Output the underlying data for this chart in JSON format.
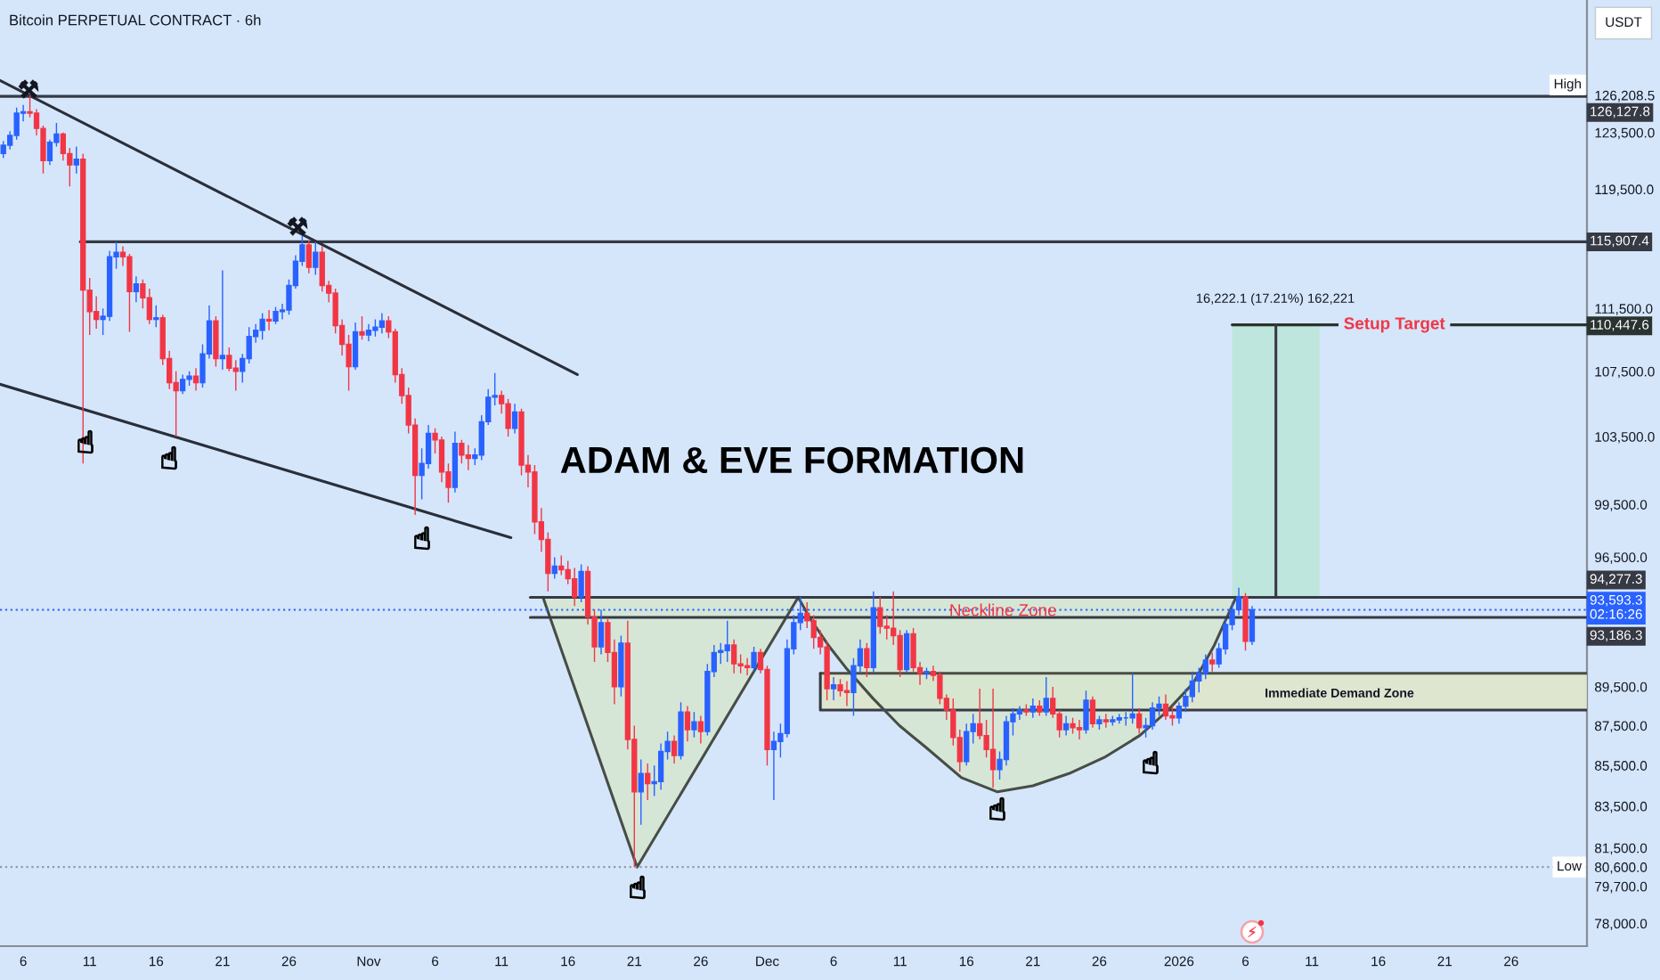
{
  "chart_data": {
    "type": "candlestick",
    "title": "ADAM & EVE FORMATION",
    "subtitle": "Bitcoin PERPETUAL CONTRACT · 6h",
    "ylabel": "USDT",
    "log": true,
    "xlim": [
      "2025-10-04T06:00",
      "2026-01-31T17:00"
    ],
    "ylim": [
      76980,
      133390
    ],
    "xticks": [
      {
        "value": "2025-10-06",
        "label": "6"
      },
      {
        "value": "2025-10-11",
        "label": "11"
      },
      {
        "value": "2025-10-16",
        "label": "16"
      },
      {
        "value": "2025-10-21",
        "label": "21"
      },
      {
        "value": "2025-10-26",
        "label": "26"
      },
      {
        "value": "2025-11-01",
        "label": "Nov"
      },
      {
        "value": "2025-11-06",
        "label": "6"
      },
      {
        "value": "2025-11-11",
        "label": "11"
      },
      {
        "value": "2025-11-16",
        "label": "16"
      },
      {
        "value": "2025-11-21",
        "label": "21"
      },
      {
        "value": "2025-11-26",
        "label": "26"
      },
      {
        "value": "2025-12-01",
        "label": "Dec"
      },
      {
        "value": "2025-12-06",
        "label": "6"
      },
      {
        "value": "2025-12-11",
        "label": "11"
      },
      {
        "value": "2025-12-16",
        "label": "16"
      },
      {
        "value": "2025-12-21",
        "label": "21"
      },
      {
        "value": "2025-12-26",
        "label": "26"
      },
      {
        "value": "2026-01-01",
        "label": "2026"
      },
      {
        "value": "2026-01-06",
        "label": "6"
      },
      {
        "value": "2026-01-11",
        "label": "11"
      },
      {
        "value": "2026-01-16",
        "label": "16"
      },
      {
        "value": "2026-01-21",
        "label": "21"
      },
      {
        "value": "2026-01-26",
        "label": "26"
      }
    ],
    "yticks": [
      {
        "value": 126208.5,
        "label": "126,208.5"
      },
      {
        "value": 123500,
        "label": "123,500.0"
      },
      {
        "value": 119500,
        "label": "119,500.0"
      },
      {
        "value": 111500,
        "label": "111,500.0"
      },
      {
        "value": 107500,
        "label": "107,500.0"
      },
      {
        "value": 103500,
        "label": "103,500.0"
      },
      {
        "value": 99500,
        "label": "99,500.0"
      },
      {
        "value": 96500,
        "label": "96,500.0"
      },
      {
        "value": 89500,
        "label": "89,500.0"
      },
      {
        "value": 87500,
        "label": "87,500.0"
      },
      {
        "value": 85500,
        "label": "85,500.0"
      },
      {
        "value": 83500,
        "label": "83,500.0"
      },
      {
        "value": 81500,
        "label": "81,500.0"
      },
      {
        "value": 80600,
        "label": "80,600.0"
      },
      {
        "value": 79700,
        "label": "79,700.0"
      },
      {
        "value": 78000,
        "label": "78,000.0"
      }
    ],
    "x": [
      "2025-10-04T12:00",
      "2025-10-05T00:00",
      "2025-10-05T12:00",
      "2025-10-06T00:00",
      "2025-10-06T12:00",
      "2025-10-07T00:00",
      "2025-10-07T12:00",
      "2025-10-08T00:00",
      "2025-10-08T12:00",
      "2025-10-09T00:00",
      "2025-10-09T12:00",
      "2025-10-10T00:00",
      "2025-10-10T12:00",
      "2025-10-11T00:00",
      "2025-10-11T12:00",
      "2025-10-12T00:00",
      "2025-10-12T12:00",
      "2025-10-13T00:00",
      "2025-10-13T12:00",
      "2025-10-14T00:00",
      "2025-10-14T12:00",
      "2025-10-15T00:00",
      "2025-10-15T12:00",
      "2025-10-16T00:00",
      "2025-10-16T12:00",
      "2025-10-17T00:00",
      "2025-10-17T12:00",
      "2025-10-18T00:00",
      "2025-10-18T12:00",
      "2025-10-19T00:00",
      "2025-10-19T12:00",
      "2025-10-20T00:00",
      "2025-10-20T12:00",
      "2025-10-21T00:00",
      "2025-10-21T12:00",
      "2025-10-22T00:00",
      "2025-10-22T12:00",
      "2025-10-23T00:00",
      "2025-10-23T12:00",
      "2025-10-24T00:00",
      "2025-10-24T12:00",
      "2025-10-25T00:00",
      "2025-10-25T12:00",
      "2025-10-26T00:00",
      "2025-10-26T12:00",
      "2025-10-27T00:00",
      "2025-10-27T12:00",
      "2025-10-28T00:00",
      "2025-10-28T12:00",
      "2025-10-29T00:00",
      "2025-10-29T12:00",
      "2025-10-30T00:00",
      "2025-10-30T12:00",
      "2025-10-31T00:00",
      "2025-10-31T12:00",
      "2025-11-01T00:00",
      "2025-11-01T12:00",
      "2025-11-02T00:00",
      "2025-11-02T12:00",
      "2025-11-03T00:00",
      "2025-11-03T12:00",
      "2025-11-04T00:00",
      "2025-11-04T12:00",
      "2025-11-05T00:00",
      "2025-11-05T12:00",
      "2025-11-06T00:00",
      "2025-11-06T12:00",
      "2025-11-07T00:00",
      "2025-11-07T12:00",
      "2025-11-08T00:00",
      "2025-11-08T12:00",
      "2025-11-09T00:00",
      "2025-11-09T12:00",
      "2025-11-10T00:00",
      "2025-11-10T12:00",
      "2025-11-11T00:00",
      "2025-11-11T12:00",
      "2025-11-12T00:00",
      "2025-11-12T12:00",
      "2025-11-13T00:00",
      "2025-11-13T12:00",
      "2025-11-14T00:00",
      "2025-11-14T12:00",
      "2025-11-15T00:00",
      "2025-11-15T12:00",
      "2025-11-16T00:00",
      "2025-11-16T12:00",
      "2025-11-17T00:00",
      "2025-11-17T12:00",
      "2025-11-18T00:00",
      "2025-11-18T12:00",
      "2025-11-19T00:00",
      "2025-11-19T12:00",
      "2025-11-20T00:00",
      "2025-11-20T12:00",
      "2025-11-21T00:00",
      "2025-11-21T12:00",
      "2025-11-22T00:00",
      "2025-11-22T12:00",
      "2025-11-23T00:00",
      "2025-11-23T12:00",
      "2025-11-24T00:00",
      "2025-11-24T12:00",
      "2025-11-25T00:00",
      "2025-11-25T12:00",
      "2025-11-26T00:00",
      "2025-11-26T12:00",
      "2025-11-27T00:00",
      "2025-11-27T12:00",
      "2025-11-28T00:00",
      "2025-11-28T12:00",
      "2025-11-29T00:00",
      "2025-11-29T12:00",
      "2025-11-30T00:00",
      "2025-11-30T12:00",
      "2025-12-01T00:00",
      "2025-12-01T12:00",
      "2025-12-02T00:00",
      "2025-12-02T12:00",
      "2025-12-03T00:00",
      "2025-12-03T12:00",
      "2025-12-04T00:00",
      "2025-12-04T12:00",
      "2025-12-05T00:00",
      "2025-12-05T12:00",
      "2025-12-06T00:00",
      "2025-12-06T12:00",
      "2025-12-07T00:00",
      "2025-12-07T12:00",
      "2025-12-08T00:00",
      "2025-12-08T12:00",
      "2025-12-09T00:00",
      "2025-12-09T12:00",
      "2025-12-10T00:00",
      "2025-12-10T12:00",
      "2025-12-11T00:00",
      "2025-12-11T12:00",
      "2025-12-12T00:00",
      "2025-12-12T12:00",
      "2025-12-13T00:00",
      "2025-12-13T12:00",
      "2025-12-14T00:00",
      "2025-12-14T12:00",
      "2025-12-15T00:00",
      "2025-12-15T12:00",
      "2025-12-16T00:00",
      "2025-12-16T12:00",
      "2025-12-17T00:00",
      "2025-12-17T12:00",
      "2025-12-18T00:00",
      "2025-12-18T12:00",
      "2025-12-19T00:00",
      "2025-12-19T12:00",
      "2025-12-20T00:00",
      "2025-12-20T12:00",
      "2025-12-21T00:00",
      "2025-12-21T12:00",
      "2025-12-22T00:00",
      "2025-12-22T12:00",
      "2025-12-23T00:00",
      "2025-12-23T12:00",
      "2025-12-24T00:00",
      "2025-12-24T12:00",
      "2025-12-25T00:00",
      "2025-12-25T12:00",
      "2025-12-26T00:00",
      "2025-12-26T12:00",
      "2025-12-27T00:00",
      "2025-12-27T12:00",
      "2025-12-28T00:00",
      "2025-12-28T12:00",
      "2025-12-29T00:00",
      "2025-12-29T12:00",
      "2025-12-30T00:00",
      "2025-12-30T12:00",
      "2025-12-31T00:00",
      "2025-12-31T12:00",
      "2026-01-01T00:00",
      "2026-01-01T12:00",
      "2026-01-02T00:00",
      "2026-01-02T12:00",
      "2026-01-03T00:00",
      "2026-01-03T12:00",
      "2026-01-04T00:00",
      "2026-01-04T12:00",
      "2026-01-05T00:00",
      "2026-01-05T12:00",
      "2026-01-06T00:00",
      "2026-01-06T12:00"
    ],
    "ohlc": [
      [
        122000,
        122900,
        121700,
        122600
      ],
      [
        122600,
        123600,
        122300,
        123300
      ],
      [
        123300,
        125300,
        123000,
        124900
      ],
      [
        124900,
        125500,
        124300,
        125000
      ],
      [
        125000,
        126208.5,
        124600,
        124900
      ],
      [
        124900,
        125200,
        123300,
        123800
      ],
      [
        123800,
        124000,
        120600,
        121500
      ],
      [
        121500,
        123000,
        121200,
        122800
      ],
      [
        122800,
        124200,
        122500,
        123400
      ],
      [
        123400,
        123500,
        121500,
        122000
      ],
      [
        122000,
        122400,
        119700,
        121200
      ],
      [
        121200,
        122500,
        120600,
        121600
      ],
      [
        121600,
        122000,
        101900,
        112700
      ],
      [
        112700,
        113500,
        109800,
        111300
      ],
      [
        111300,
        112300,
        110200,
        110800
      ],
      [
        110800,
        111500,
        109800,
        111000
      ],
      [
        111000,
        115300,
        110700,
        114900
      ],
      [
        114900,
        115900,
        114100,
        115200
      ],
      [
        115200,
        115600,
        114300,
        114900
      ],
      [
        114900,
        115100,
        110000,
        112600
      ],
      [
        112600,
        113600,
        111900,
        113100
      ],
      [
        113100,
        113400,
        111500,
        112200
      ],
      [
        112200,
        112800,
        110500,
        110800
      ],
      [
        110800,
        111700,
        110300,
        110900
      ],
      [
        110900,
        111100,
        107900,
        108300
      ],
      [
        108300,
        108800,
        106400,
        106800
      ],
      [
        106800,
        107500,
        103500,
        106300
      ],
      [
        106300,
        107300,
        106100,
        107000
      ],
      [
        107000,
        107500,
        106600,
        107200
      ],
      [
        107200,
        107700,
        106300,
        106800
      ],
      [
        106800,
        109200,
        106500,
        108600
      ],
      [
        108600,
        111700,
        108300,
        110700
      ],
      [
        110700,
        111000,
        107800,
        108300
      ],
      [
        108300,
        114000,
        107600,
        108500
      ],
      [
        108500,
        109000,
        107500,
        107700
      ],
      [
        107700,
        108200,
        106300,
        107500
      ],
      [
        107500,
        108600,
        106800,
        108300
      ],
      [
        108300,
        110300,
        108000,
        109700
      ],
      [
        109700,
        110500,
        109300,
        110100
      ],
      [
        110100,
        111200,
        109500,
        110800
      ],
      [
        110800,
        111400,
        110100,
        110700
      ],
      [
        110700,
        111600,
        110500,
        111300
      ],
      [
        111300,
        111800,
        110800,
        111400
      ],
      [
        111400,
        113400,
        111100,
        113000
      ],
      [
        113000,
        115000,
        112800,
        114600
      ],
      [
        114600,
        116300,
        114300,
        115700
      ],
      [
        115700,
        116000,
        113800,
        114200
      ],
      [
        114200,
        115900,
        113700,
        115200
      ],
      [
        115200,
        115600,
        112600,
        113000
      ],
      [
        113000,
        113300,
        111900,
        112500
      ],
      [
        112500,
        112800,
        109900,
        110400
      ],
      [
        110400,
        110800,
        108500,
        109200
      ],
      [
        109200,
        109800,
        106300,
        107800
      ],
      [
        107800,
        110600,
        107600,
        110000
      ],
      [
        110000,
        111000,
        109500,
        109800
      ],
      [
        109800,
        110500,
        109400,
        110100
      ],
      [
        110100,
        110800,
        109700,
        110300
      ],
      [
        110300,
        111200,
        109900,
        110700
      ],
      [
        110700,
        111000,
        109600,
        110000
      ],
      [
        110000,
        110200,
        106800,
        107300
      ],
      [
        107300,
        107700,
        105500,
        106000
      ],
      [
        106000,
        106500,
        103700,
        104200
      ],
      [
        104200,
        104600,
        98900,
        101200
      ],
      [
        101200,
        102800,
        99800,
        101900
      ],
      [
        101900,
        104200,
        101600,
        103700
      ],
      [
        103700,
        104000,
        102500,
        103300
      ],
      [
        103300,
        103500,
        100800,
        101400
      ],
      [
        101400,
        101900,
        99600,
        100500
      ],
      [
        100500,
        103800,
        100200,
        103100
      ],
      [
        103100,
        103300,
        101900,
        102400
      ],
      [
        102400,
        103000,
        101500,
        102200
      ],
      [
        102200,
        102800,
        101800,
        102400
      ],
      [
        102400,
        104800,
        102100,
        104400
      ],
      [
        104400,
        106400,
        104200,
        105900
      ],
      [
        105900,
        107400,
        105400,
        106000
      ],
      [
        106000,
        106300,
        104900,
        105500
      ],
      [
        105500,
        105800,
        103500,
        104000
      ],
      [
        104000,
        105500,
        103700,
        105000
      ],
      [
        105000,
        105200,
        101200,
        101800
      ],
      [
        101800,
        102400,
        100500,
        101400
      ],
      [
        101400,
        101800,
        97800,
        98500
      ],
      [
        98500,
        99300,
        96800,
        97500
      ],
      [
        97500,
        97900,
        94600,
        95600
      ],
      [
        95600,
        96500,
        95300,
        96000
      ],
      [
        96000,
        96600,
        95500,
        95800
      ],
      [
        95800,
        96300,
        95000,
        95300
      ],
      [
        95300,
        95900,
        93800,
        94300
      ],
      [
        94300,
        96100,
        94000,
        95700
      ],
      [
        95700,
        96000,
        92800,
        93200
      ],
      [
        93200,
        93600,
        90800,
        91600
      ],
      [
        91600,
        93600,
        91200,
        92900
      ],
      [
        92900,
        93100,
        90800,
        91300
      ],
      [
        91300,
        92000,
        88600,
        89500
      ],
      [
        89500,
        92200,
        89000,
        91800
      ],
      [
        91800,
        93000,
        86300,
        86800
      ],
      [
        86800,
        87500,
        80600,
        84200
      ],
      [
        84200,
        85800,
        82600,
        85100
      ],
      [
        85100,
        85600,
        83800,
        84600
      ],
      [
        84600,
        85500,
        84000,
        84700
      ],
      [
        84700,
        86600,
        84300,
        86200
      ],
      [
        86200,
        87200,
        85800,
        86700
      ],
      [
        86700,
        87000,
        85600,
        86000
      ],
      [
        86000,
        88700,
        85800,
        88200
      ],
      [
        88200,
        88500,
        86700,
        87300
      ],
      [
        87300,
        88200,
        86900,
        87700
      ],
      [
        87700,
        88000,
        86600,
        87200
      ],
      [
        87200,
        90700,
        87000,
        90300
      ],
      [
        90300,
        91700,
        90000,
        91300
      ],
      [
        91300,
        91800,
        90700,
        91400
      ],
      [
        91400,
        93000,
        90800,
        91700
      ],
      [
        91700,
        92000,
        90200,
        90700
      ],
      [
        90700,
        91200,
        90200,
        90600
      ],
      [
        90600,
        91000,
        90100,
        90500
      ],
      [
        90500,
        91600,
        90300,
        91300
      ],
      [
        91300,
        91500,
        90200,
        90400
      ],
      [
        90400,
        90600,
        85500,
        86300
      ],
      [
        86300,
        87200,
        83800,
        86700
      ],
      [
        86700,
        87600,
        85900,
        87100
      ],
      [
        87100,
        92000,
        86900,
        91500
      ],
      [
        91500,
        93300,
        91200,
        92900
      ],
      [
        92900,
        94300,
        92500,
        93400
      ],
      [
        93400,
        94000,
        92600,
        93000
      ],
      [
        93000,
        93300,
        91500,
        92100
      ],
      [
        92100,
        92500,
        91200,
        91600
      ],
      [
        91600,
        91900,
        88800,
        89400
      ],
      [
        89400,
        90000,
        88800,
        89600
      ],
      [
        89600,
        89900,
        89000,
        89300
      ],
      [
        89300,
        89800,
        88500,
        89200
      ],
      [
        89200,
        91000,
        88000,
        90600
      ],
      [
        90600,
        92000,
        90200,
        91500
      ],
      [
        91500,
        91800,
        90000,
        90500
      ],
      [
        90500,
        94600,
        90200,
        93700
      ],
      [
        93700,
        94300,
        92300,
        92700
      ],
      [
        92700,
        93300,
        92000,
        92600
      ],
      [
        92600,
        94600,
        91700,
        92200
      ],
      [
        92200,
        92500,
        90000,
        90400
      ],
      [
        90400,
        92500,
        90200,
        92300
      ],
      [
        92300,
        92600,
        90300,
        90500
      ],
      [
        90500,
        90800,
        89600,
        90200
      ],
      [
        90200,
        90500,
        89900,
        90300
      ],
      [
        90300,
        90600,
        89800,
        90100
      ],
      [
        90100,
        90300,
        88600,
        88900
      ],
      [
        88900,
        89100,
        87800,
        88300
      ],
      [
        88300,
        88900,
        86500,
        86900
      ],
      [
        86900,
        87300,
        85200,
        85700
      ],
      [
        85700,
        87600,
        85500,
        87200
      ],
      [
        87200,
        88100,
        86600,
        87600
      ],
      [
        87600,
        89400,
        86800,
        87000
      ],
      [
        87000,
        87800,
        85900,
        86300
      ],
      [
        86300,
        89400,
        84400,
        85300
      ],
      [
        85300,
        86200,
        84800,
        85800
      ],
      [
        85800,
        88000,
        85500,
        87700
      ],
      [
        87700,
        88400,
        87000,
        88100
      ],
      [
        88100,
        88500,
        87800,
        88300
      ],
      [
        88300,
        88600,
        88000,
        88200
      ],
      [
        88200,
        88900,
        87900,
        88500
      ],
      [
        88500,
        88800,
        88000,
        88200
      ],
      [
        88200,
        90000,
        88000,
        88900
      ],
      [
        88900,
        89500,
        87900,
        88100
      ],
      [
        88100,
        88300,
        86900,
        87300
      ],
      [
        87300,
        88000,
        87000,
        87600
      ],
      [
        87600,
        87900,
        87100,
        87400
      ],
      [
        87400,
        87800,
        86800,
        87300
      ],
      [
        87300,
        89300,
        87100,
        88800
      ],
      [
        88800,
        89000,
        87400,
        87600
      ],
      [
        87600,
        88000,
        87300,
        87800
      ],
      [
        87800,
        88100,
        87400,
        87700
      ],
      [
        87700,
        88000,
        87500,
        87800
      ],
      [
        87800,
        88100,
        87600,
        87900
      ],
      [
        87900,
        88200,
        87500,
        87900
      ],
      [
        87900,
        90200,
        87600,
        88100
      ],
      [
        88100,
        88400,
        87100,
        87400
      ],
      [
        87400,
        87900,
        86900,
        87500
      ],
      [
        87500,
        88700,
        87300,
        88400
      ],
      [
        88400,
        89000,
        88000,
        88600
      ],
      [
        88600,
        89100,
        87800,
        88000
      ],
      [
        88000,
        88500,
        87500,
        87900
      ],
      [
        87900,
        88700,
        87600,
        88500
      ],
      [
        88500,
        89400,
        88200,
        89000
      ],
      [
        89000,
        90300,
        88700,
        89800
      ],
      [
        89800,
        90500,
        89200,
        90200
      ],
      [
        90200,
        91200,
        89900,
        90900
      ],
      [
        90900,
        91300,
        90300,
        90700
      ],
      [
        90700,
        91800,
        90500,
        91500
      ],
      [
        91500,
        93100,
        91200,
        92800
      ],
      [
        92800,
        94000,
        92500,
        93600
      ],
      [
        93600,
        94800,
        93300,
        94300
      ],
      [
        94300,
        94500,
        91400,
        91900
      ],
      [
        91900,
        93800,
        91700,
        93593.3
      ]
    ],
    "colors": [
      "#2962ff",
      "#2962ff",
      "#2962ff",
      "#2962ff",
      "#f23645",
      "#f23645",
      "#f23645",
      "#2962ff",
      "#2962ff",
      "#f23645",
      "#f23645",
      "#2962ff",
      "#f23645",
      "#f23645",
      "#f23645",
      "#2962ff",
      "#2962ff",
      "#2962ff",
      "#f23645",
      "#f23645",
      "#2962ff",
      "#f23645",
      "#f23645",
      "#2962ff",
      "#f23645",
      "#f23645",
      "#f23645",
      "#2962ff",
      "#2962ff",
      "#f23645",
      "#2962ff",
      "#2962ff",
      "#f23645",
      "#2962ff",
      "#f23645",
      "#f23645",
      "#2962ff",
      "#2962ff",
      "#2962ff",
      "#2962ff",
      "#f23645",
      "#2962ff",
      "#2962ff",
      "#2962ff",
      "#2962ff",
      "#2962ff",
      "#f23645",
      "#2962ff",
      "#f23645",
      "#f23645",
      "#f23645",
      "#f23645",
      "#f23645",
      "#2962ff",
      "#f23645",
      "#2962ff",
      "#2962ff",
      "#2962ff",
      "#f23645",
      "#f23645",
      "#f23645",
      "#f23645",
      "#f23645",
      "#2962ff",
      "#2962ff",
      "#f23645",
      "#f23645",
      "#f23645",
      "#2962ff",
      "#f23645",
      "#f23645",
      "#2962ff",
      "#2962ff",
      "#2962ff",
      "#2962ff",
      "#f23645",
      "#f23645",
      "#2962ff",
      "#f23645",
      "#f23645",
      "#f23645",
      "#f23645",
      "#f23645",
      "#2962ff",
      "#f23645",
      "#f23645",
      "#f23645",
      "#2962ff",
      "#f23645",
      "#f23645",
      "#2962ff",
      "#f23645",
      "#f23645",
      "#2962ff",
      "#f23645",
      "#f23645",
      "#2962ff",
      "#f23645",
      "#2962ff",
      "#2962ff",
      "#2962ff",
      "#f23645",
      "#2962ff",
      "#f23645",
      "#2962ff",
      "#f23645",
      "#2962ff",
      "#2962ff",
      "#2962ff",
      "#2962ff",
      "#f23645",
      "#f23645",
      "#f23645",
      "#2962ff",
      "#f23645",
      "#f23645",
      "#2962ff",
      "#2962ff",
      "#2962ff",
      "#2962ff",
      "#2962ff",
      "#f23645",
      "#f23645",
      "#f23645",
      "#f23645",
      "#2962ff",
      "#f23645",
      "#f23645",
      "#2962ff",
      "#2962ff",
      "#f23645",
      "#2962ff",
      "#f23645",
      "#f23645",
      "#f23645",
      "#f23645",
      "#2962ff",
      "#f23645",
      "#f23645",
      "#2962ff",
      "#f23645",
      "#f23645",
      "#f23645",
      "#f23645",
      "#f23645",
      "#2962ff",
      "#2962ff",
      "#f23645",
      "#f23645",
      "#f23645",
      "#2962ff",
      "#2962ff",
      "#2962ff",
      "#2962ff",
      "#f23645",
      "#2962ff",
      "#f23645",
      "#2962ff",
      "#f23645",
      "#f23645",
      "#2962ff",
      "#f23645",
      "#f23645",
      "#2962ff",
      "#f23645",
      "#2962ff",
      "#f23645",
      "#2962ff",
      "#2962ff",
      "#2962ff",
      "#2962ff",
      "#f23645",
      "#2962ff",
      "#2962ff",
      "#2962ff",
      "#f23645",
      "#f23645",
      "#2962ff",
      "#2962ff",
      "#2962ff",
      "#2962ff",
      "#2962ff",
      "#f23645",
      "#2962ff",
      "#2962ff",
      "#2962ff",
      "#2962ff",
      "#f23645",
      "#2962ff"
    ],
    "series": [
      {
        "type": "line",
        "x": [
          "2025-12-05T00:00",
          "2026-01-31T17:00"
        ],
        "values": [
          90200,
          90200
        ],
        "lower": [
          88300,
          88300
        ],
        "upper": [
          90200,
          90200
        ],
        "color": "#4b4d42"
      },
      {
        "type": "line",
        "x": [
          "2025-12-05T00:00",
          "2025-12-05T00:00",
          "2026-01-31T17:00"
        ],
        "values": [
          90200,
          88300,
          88300
        ],
        "color": "#363a45"
      },
      {
        "type": "line",
        "x": [
          "2025-11-14T03:00",
          "2025-11-21T05:00",
          "2025-12-03T08:00"
        ],
        "values": [
          94277.3,
          80600,
          94277.3
        ],
        "lower": [
          94277.3,
          80600,
          94277.3
        ],
        "upper": [
          94277.3,
          94277.3,
          94277.3
        ],
        "color": "#474d45"
      },
      {
        "type": "line",
        "x": [
          "2025-12-03T08:00",
          "2025-12-04T06:00",
          "2025-12-05T14:00",
          "2025-12-06T22:00",
          "2025-12-08T23:00",
          "2025-12-10T23:00",
          "2025-12-12T23:00",
          "2025-12-15T15:00",
          "2025-12-18T08:00",
          "2025-12-21T00:00",
          "2025-12-23T17:00",
          "2025-12-26T09:00",
          "2025-12-29T01:00",
          "2025-12-31T01:00",
          "2026-01-02T02:00",
          "2026-01-03T16:00",
          "2026-01-05T07:00"
        ],
        "values": [
          94277.3,
          93100,
          91700,
          90500,
          88900,
          87500,
          86400,
          84900,
          84200,
          84500,
          85100,
          85900,
          87000,
          88200,
          89700,
          91700,
          94277.3
        ],
        "lower": [
          94277.3,
          93100,
          91700,
          90500,
          88900,
          87500,
          86400,
          84900,
          84200,
          84500,
          85100,
          85900,
          87000,
          88200,
          89700,
          91700,
          94277.3
        ],
        "upper": [
          94277.3,
          94277.3,
          94277.3,
          94277.3,
          94277.3,
          94277.3,
          94277.3,
          94277.3,
          94277.3,
          94277.3,
          94277.3,
          94277.3,
          94277.3,
          94277.3,
          94277.3,
          94277.3,
          94277.3
        ],
        "color": "#474d45"
      },
      {
        "type": "line",
        "x": [
          "2026-01-05T00:00",
          "2026-01-11T14:00",
          "2026-01-31T17:00"
        ],
        "values": [
          110447.6,
          110447.6,
          110447.6
        ],
        "lower": [
          94277.3,
          94277.3,
          null
        ],
        "upper": [
          110447.6,
          110447.6,
          null
        ],
        "color": "#29332f",
        "value_labels": [
          null,
          null,
          "110,447.6"
        ]
      },
      {
        "type": "line",
        "x": [
          "2025-10-04T06:00",
          "2026-01-31T17:00"
        ],
        "values": [
          126127.8,
          126127.8
        ],
        "color": "#363a45",
        "value_labels": [
          null,
          "126,127.8"
        ]
      },
      {
        "type": "line",
        "x": [
          "2025-10-10T07:00",
          "2026-01-31T17:00"
        ],
        "values": [
          115907.4,
          115907.4
        ],
        "color": "#363a45",
        "value_labels": [
          null,
          "115,907.4"
        ]
      },
      {
        "type": "line",
        "x": [
          "2025-10-04T06:00",
          "2025-11-16T17:00"
        ],
        "values": [
          127300,
          107300
        ],
        "color": "#2a2e39"
      },
      {
        "type": "line",
        "x": [
          "2025-10-04T06:00",
          "2025-11-11T17:00"
        ],
        "values": [
          106700,
          97600
        ],
        "color": "#2a2e39"
      },
      {
        "type": "line",
        "x": [
          "2025-11-13T04:00",
          "2026-01-31T17:00"
        ],
        "values": [
          94277.3,
          94277.3
        ],
        "color": "#363a45",
        "value_labels": [
          null,
          "94,277.3"
        ]
      },
      {
        "type": "line",
        "x": [
          "2025-11-13T04:00",
          "2026-01-31T17:00"
        ],
        "values": [
          93186.3,
          93186.3
        ],
        "color": "#363a45",
        "value_labels": [
          null,
          "93,186.3"
        ]
      },
      {
        "type": "line",
        "x": [
          "2026-01-08T07:00",
          "2026-01-08T07:00"
        ],
        "values": [
          94277.3,
          110447.6
        ],
        "color": "#363a45"
      }
    ],
    "ref_lines": [
      {
        "axis": "y",
        "value": 93593.3,
        "label": "93,593.3\n02:16:26",
        "color": "#2962ff",
        "line_style": "dotted"
      },
      {
        "axis": "y",
        "value": 80600,
        "color": "#9598a1",
        "line_style": "dotted"
      }
    ],
    "annotations": [
      {
        "text": "Neckline Zone",
        "x": "2025-12-18T18:00",
        "y": 93500
      },
      {
        "text": "Setup Target",
        "x": "2026-01-17T05:00",
        "y": 110447.6
      },
      "16,222.1 (17.21%) 162,221",
      "Immediate Demand Zone",
      {
        "text": "High",
        "y": 126208.5
      },
      {
        "text": "Low",
        "y": 80600
      }
    ]
  }
}
